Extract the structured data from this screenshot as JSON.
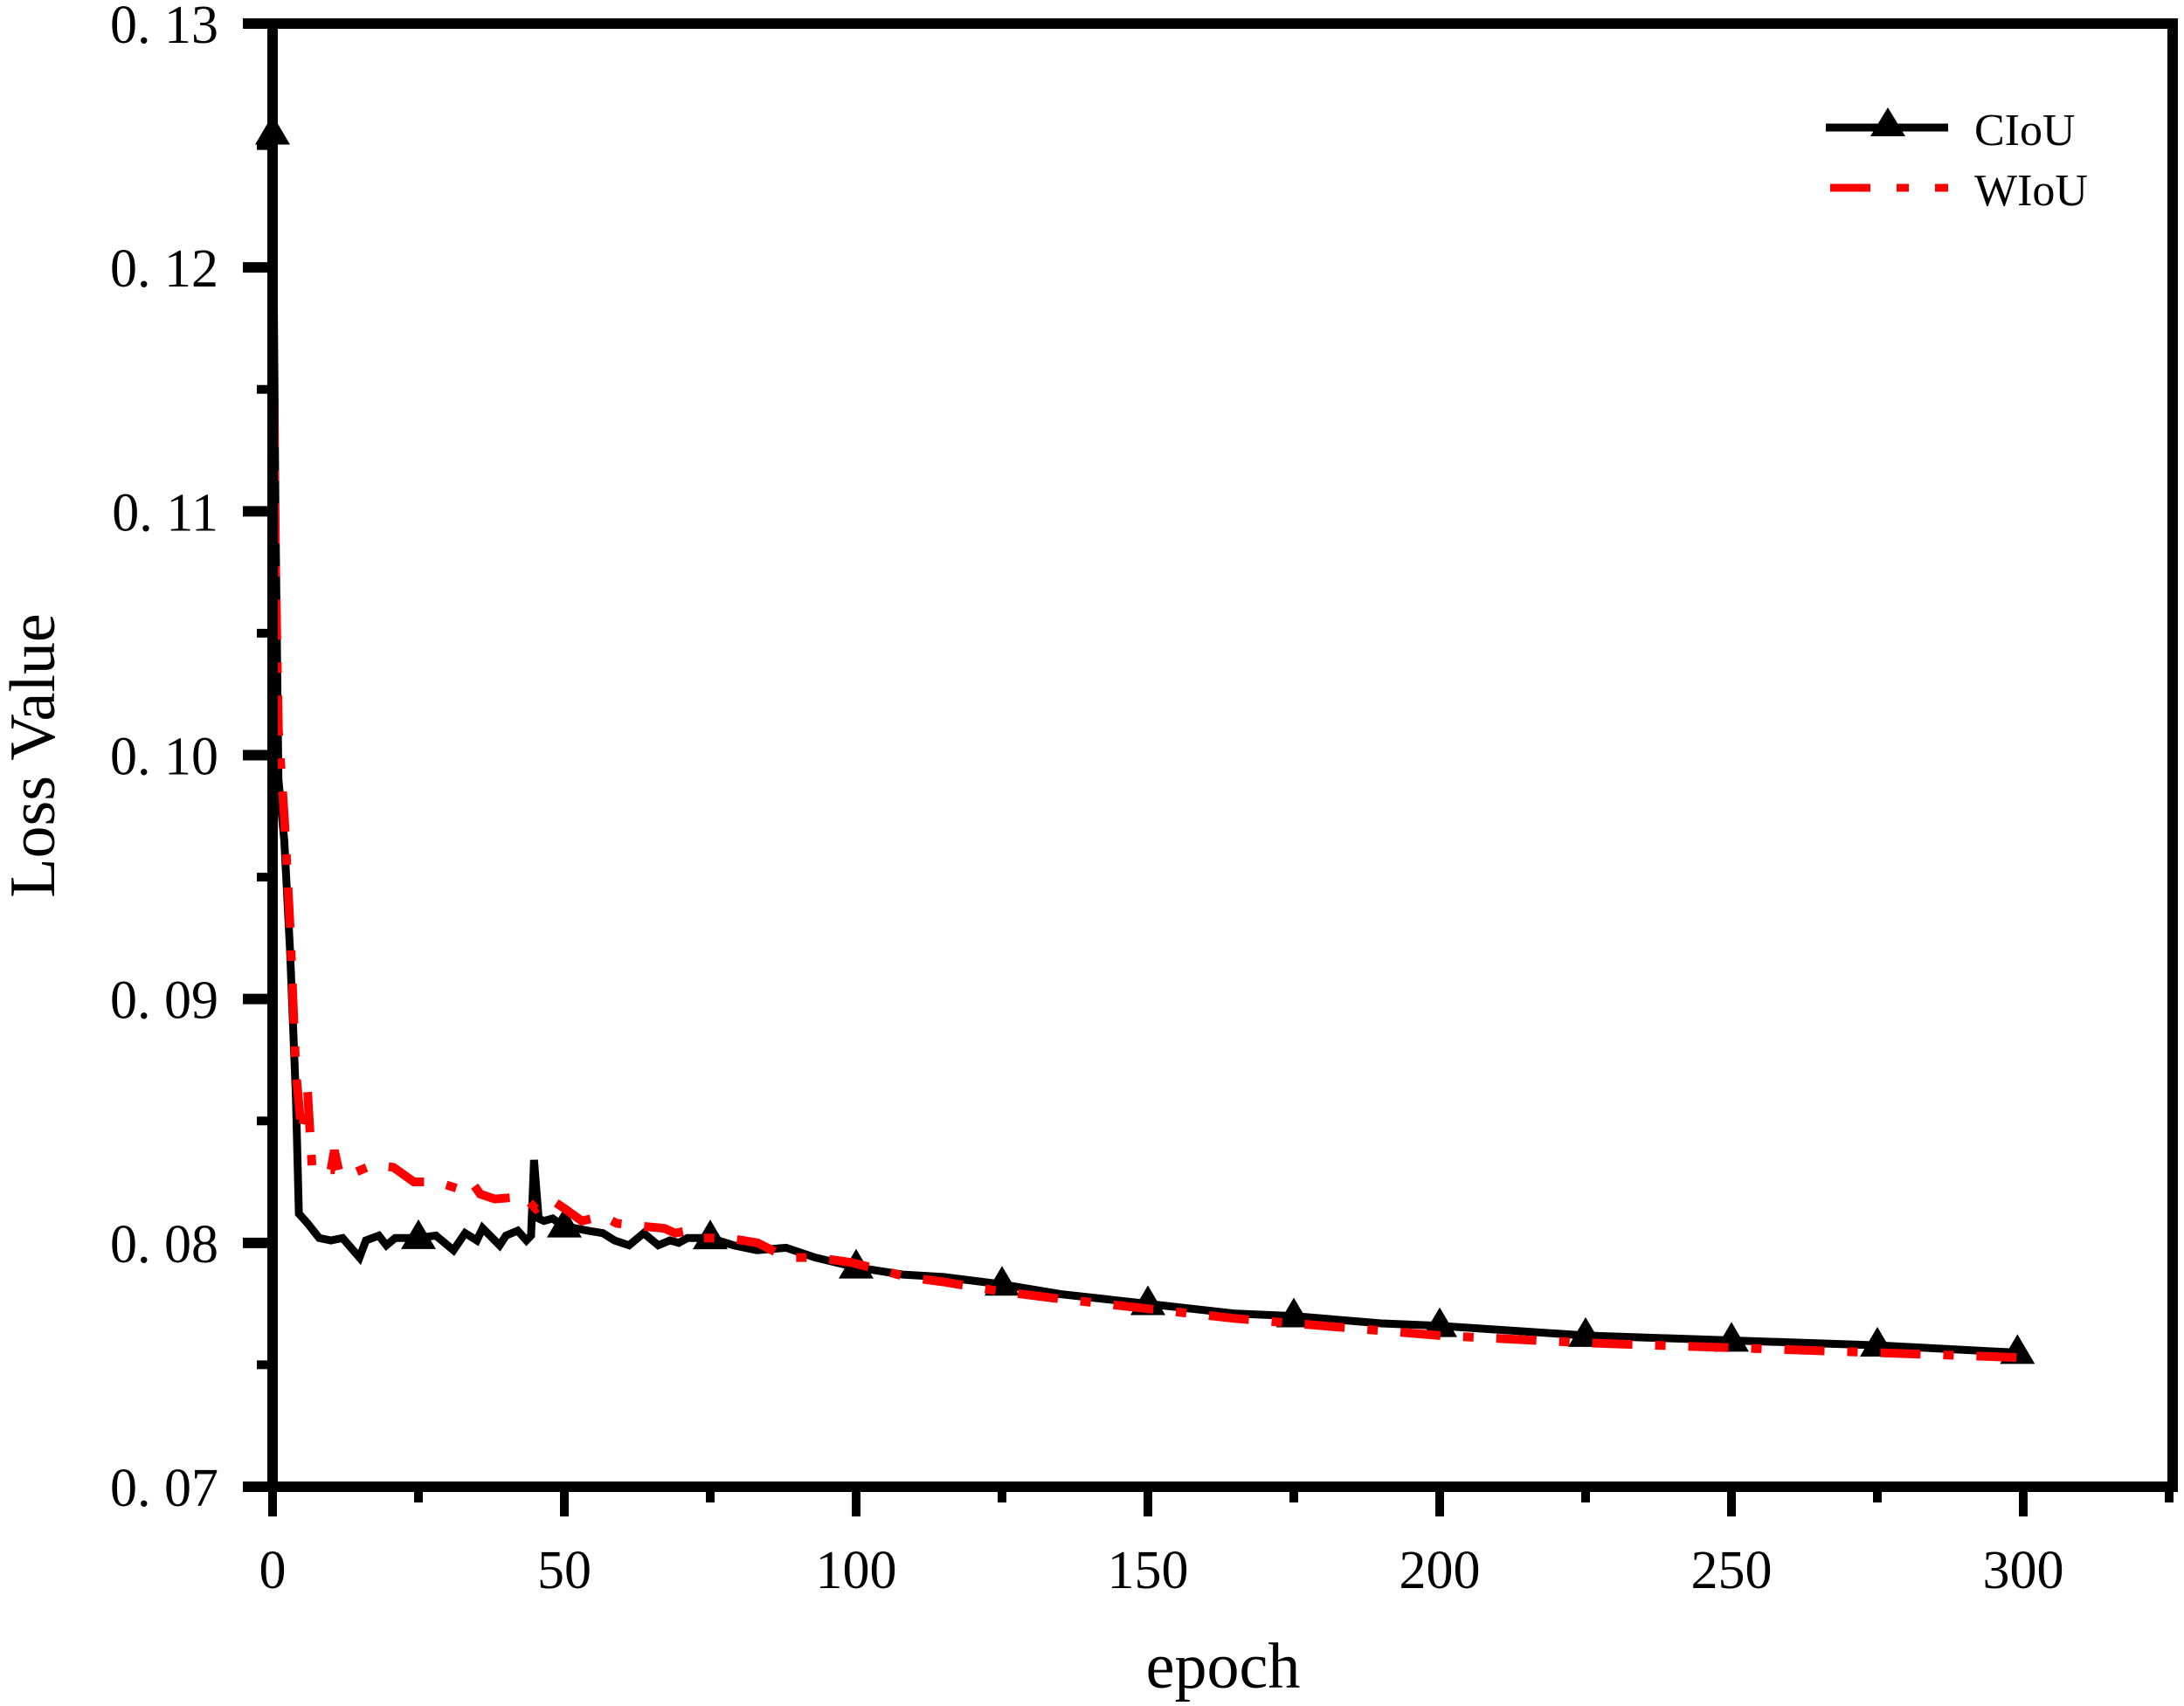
{
  "chart_data": {
    "type": "line",
    "title": "",
    "xlabel": "epoch",
    "ylabel": "Loss Value",
    "xlim": [
      0,
      325
    ],
    "ylim": [
      0.07,
      0.13
    ],
    "grid": false,
    "legend_position": "upper right",
    "x_ticks": [
      0,
      50,
      100,
      150,
      200,
      250,
      300
    ],
    "x_tick_labels": [
      "0",
      "50",
      "100",
      "150",
      "200",
      "250",
      "300"
    ],
    "x_minor_ticks": [
      25,
      75,
      125,
      175,
      225,
      275,
      325
    ],
    "y_ticks": [
      0.07,
      0.08,
      0.09,
      0.1,
      0.11,
      0.12,
      0.13
    ],
    "y_tick_labels": [
      "0. 07",
      "0. 08",
      "0. 09",
      "0. 10",
      "0. 11",
      "0. 12",
      "0. 13"
    ],
    "y_minor_ticks": [
      0.075,
      0.085,
      0.095,
      0.105,
      0.115,
      0.125
    ],
    "series": [
      {
        "name": "CIoU",
        "color": "#000000",
        "line_style": "solid",
        "marker": "triangle",
        "marker_epochs": [
          0,
          25,
          50,
          75,
          100,
          125,
          150,
          175,
          200,
          225,
          250,
          275,
          299
        ],
        "x": [
          0,
          0.5,
          1,
          2,
          3,
          4,
          4.5,
          6,
          8,
          10,
          12,
          14.9,
          16,
          18.2,
          19.5,
          21,
          24.7,
          28,
          31,
          33,
          35,
          36,
          38.9,
          40,
          42,
          43.5,
          44.3,
          44.8,
          45.6,
          46.5,
          48,
          49.7,
          54.1,
          56.6,
          58.6,
          61.1,
          63.6,
          66.1,
          68.1,
          69.6,
          71.1,
          75,
          79,
          83,
          88,
          93,
          100,
          108,
          115,
          125,
          135,
          150,
          165,
          175,
          190,
          200,
          225,
          250,
          275,
          299
        ],
        "values": [
          0.1255,
          0.11,
          0.099,
          0.0965,
          0.092,
          0.086,
          0.0812,
          0.0808,
          0.0802,
          0.0801,
          0.0802,
          0.0794,
          0.0801,
          0.0803,
          0.0799,
          0.0802,
          0.0802,
          0.0803,
          0.0797,
          0.0804,
          0.0801,
          0.0806,
          0.0799,
          0.0803,
          0.0805,
          0.0801,
          0.0803,
          0.0834,
          0.081,
          0.0809,
          0.081,
          0.0807,
          0.0805,
          0.0804,
          0.0801,
          0.0799,
          0.0804,
          0.0799,
          0.0801,
          0.08,
          0.0802,
          0.0802,
          0.0799,
          0.0797,
          0.0798,
          0.0794,
          0.079,
          0.0787,
          0.0786,
          0.0783,
          0.0779,
          0.0775,
          0.0771,
          0.077,
          0.0767,
          0.0766,
          0.0762,
          0.076,
          0.0758,
          0.0755
        ]
      },
      {
        "name": "WIoU",
        "color": "#ff0000",
        "line_style": "dash-dot",
        "marker": "none",
        "x": [
          0,
          0.5,
          1,
          2,
          3,
          4,
          5,
          6,
          6.8,
          8,
          10,
          10.6,
          11.5,
          13.2,
          17.2,
          20.7,
          24.2,
          28.1,
          32.1,
          34.1,
          35.6,
          38.1,
          43.1,
          45.1,
          47.6,
          50.1,
          53,
          56.6,
          59,
          62.6,
          67.1,
          69,
          71.1,
          73.6,
          78.1,
          83.1,
          88.1,
          93.1,
          99.1,
          104.1,
          108.6,
          115,
          125,
          135,
          150,
          165,
          175,
          190,
          200,
          225,
          250,
          275,
          299
        ],
        "values": [
          0.1182,
          0.108,
          0.101,
          0.0975,
          0.093,
          0.087,
          0.0845,
          0.0862,
          0.083,
          0.083,
          0.083,
          0.0838,
          0.0828,
          0.0828,
          0.0832,
          0.0831,
          0.0825,
          0.0825,
          0.0822,
          0.0825,
          0.082,
          0.0818,
          0.0819,
          0.0814,
          0.0818,
          0.0814,
          0.0809,
          0.0811,
          0.0808,
          0.0807,
          0.0806,
          0.0804,
          0.0805,
          0.0802,
          0.0802,
          0.08,
          0.0794,
          0.0794,
          0.0792,
          0.0789,
          0.0786,
          0.0784,
          0.078,
          0.0777,
          0.0773,
          0.0769,
          0.0767,
          0.0764,
          0.0762,
          0.0759,
          0.0757,
          0.0755,
          0.0753
        ]
      }
    ]
  },
  "legend": {
    "items": [
      {
        "label": "CIoU",
        "color": "#000000",
        "style": "solid-triangle"
      },
      {
        "label": "WIoU",
        "color": "#ff0000",
        "style": "dash-dot"
      }
    ]
  },
  "axes": {
    "x_title": "epoch",
    "y_title": "Loss Value"
  }
}
